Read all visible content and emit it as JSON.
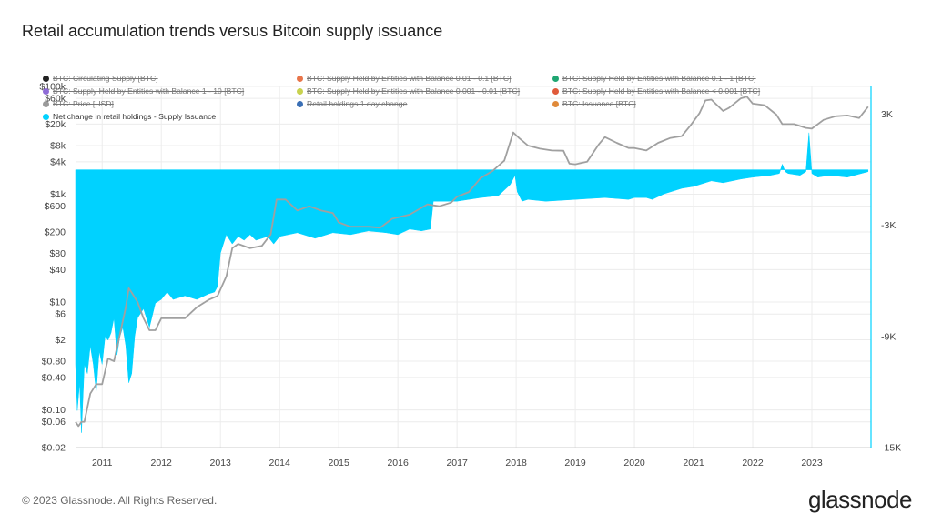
{
  "title": "Retail accumulation trends versus Bitcoin supply issuance",
  "footer": "© 2023 Glassnode. All Rights Reserved.",
  "brand": "glassnode",
  "legend": [
    {
      "label": "BTC: Circulating Supply [BTC]",
      "color": "#222222",
      "active": false
    },
    {
      "label": "BTC: Supply Held by Entities with Balance 0.01 - 0.1 [BTC]",
      "color": "#e8754a",
      "active": false
    },
    {
      "label": "BTC: Supply Held by Entities with Balance 0.1 - 1 [BTC]",
      "color": "#1fa672",
      "active": false
    },
    {
      "label": "BTC: Supply Held by Entities with Balance 1 - 10 [BTC]",
      "color": "#8e6bd6",
      "active": false
    },
    {
      "label": "BTC: Supply Held by Entities with Balance 0.001 - 0.01 [BTC]",
      "color": "#c8d24f",
      "active": false
    },
    {
      "label": "BTC: Supply Held by Entities with Balance < 0.001 [BTC]",
      "color": "#e05a3a",
      "active": false
    },
    {
      "label": "BTC: Price [USD]",
      "color": "#9a9a9a",
      "active": false
    },
    {
      "label": "Retail holdings 1 day change",
      "color": "#3a6fb5",
      "active": false
    },
    {
      "label": "BTC: Issuance [BTC]",
      "color": "#e08a3a",
      "active": false
    },
    {
      "label": "Net change in retail holdings - Supply Issuance",
      "color": "#00d2ff",
      "active": true
    }
  ],
  "colors": {
    "price_line": "#a0a0a0",
    "net_area": "#00d2ff",
    "grid": "#ececec",
    "axis_line": "#00d2ff"
  },
  "chart_data": {
    "type": "area",
    "x_ticks": [
      "2011",
      "2012",
      "2013",
      "2014",
      "2015",
      "2016",
      "2017",
      "2018",
      "2019",
      "2020",
      "2021",
      "2022",
      "2023"
    ],
    "x_range": [
      2010.55,
      2024.0
    ],
    "y_left": {
      "scale": "log",
      "range": [
        0.02,
        100000
      ],
      "tick_values": [
        0.02,
        0.06,
        0.1,
        0.4,
        0.8,
        2,
        6,
        10,
        40,
        80,
        200,
        600,
        1000,
        4000,
        8000,
        20000,
        60000,
        100000
      ],
      "tick_labels": [
        "$0.02",
        "$0.06",
        "$0.10",
        "$0.40",
        "$0.80",
        "$2",
        "$6",
        "$10",
        "$40",
        "$80",
        "$200",
        "$600",
        "$1k",
        "$4k",
        "$8k",
        "$20k",
        "$60k",
        "$100k"
      ]
    },
    "y_right": {
      "scale": "linear",
      "range": [
        -15000,
        4500
      ],
      "tick_values": [
        3000,
        -3000,
        -9000,
        -15000
      ],
      "tick_labels": [
        "3K",
        "-3K",
        "-9K",
        "-15K"
      ]
    },
    "series": [
      {
        "name": "BTC: Price [USD]",
        "axis": "left",
        "x": [
          2010.55,
          2010.6,
          2010.65,
          2010.7,
          2010.8,
          2010.9,
          2011.0,
          2011.1,
          2011.2,
          2011.3,
          2011.4,
          2011.45,
          2011.5,
          2011.6,
          2011.7,
          2011.8,
          2011.9,
          2012.0,
          2012.2,
          2012.4,
          2012.6,
          2012.8,
          2012.95,
          2013.1,
          2013.2,
          2013.3,
          2013.5,
          2013.7,
          2013.85,
          2013.95,
          2014.1,
          2014.3,
          2014.5,
          2014.7,
          2014.9,
          2015.0,
          2015.2,
          2015.5,
          2015.7,
          2015.9,
          2016.2,
          2016.5,
          2016.7,
          2016.9,
          2017.0,
          2017.2,
          2017.4,
          2017.6,
          2017.8,
          2017.95,
          2018.05,
          2018.2,
          2018.4,
          2018.6,
          2018.8,
          2018.9,
          2019.0,
          2019.2,
          2019.4,
          2019.5,
          2019.7,
          2019.9,
          2020.0,
          2020.2,
          2020.4,
          2020.6,
          2020.8,
          2020.95,
          2021.1,
          2021.2,
          2021.3,
          2021.5,
          2021.6,
          2021.8,
          2021.9,
          2022.0,
          2022.2,
          2022.4,
          2022.5,
          2022.7,
          2022.9,
          2023.0,
          2023.2,
          2023.4,
          2023.6,
          2023.8,
          2023.95
        ],
        "values": [
          0.06,
          0.05,
          0.06,
          0.06,
          0.2,
          0.3,
          0.3,
          0.9,
          0.8,
          2.5,
          8,
          18,
          15,
          10,
          5,
          3,
          3,
          5,
          5,
          5,
          8,
          11,
          13,
          30,
          100,
          120,
          100,
          110,
          180,
          800,
          800,
          500,
          600,
          500,
          450,
          300,
          250,
          250,
          240,
          350,
          420,
          650,
          600,
          700,
          900,
          1100,
          2000,
          2700,
          4200,
          14000,
          11000,
          8000,
          7000,
          6500,
          6400,
          3700,
          3600,
          4000,
          8500,
          11500,
          9000,
          7200,
          7200,
          6500,
          9000,
          11000,
          12000,
          19000,
          32000,
          55000,
          57000,
          35000,
          40000,
          60000,
          65000,
          48000,
          45000,
          30000,
          20000,
          20000,
          17000,
          16500,
          24000,
          28000,
          29000,
          26000,
          42000
        ]
      },
      {
        "name": "Net change in retail holdings - Supply Issuance",
        "axis": "right",
        "x": [
          2010.55,
          2010.58,
          2010.62,
          2010.65,
          2010.7,
          2010.75,
          2010.8,
          2010.85,
          2010.9,
          2010.95,
          2011.0,
          2011.05,
          2011.1,
          2011.15,
          2011.2,
          2011.25,
          2011.3,
          2011.35,
          2011.4,
          2011.45,
          2011.5,
          2011.55,
          2011.6,
          2011.7,
          2011.8,
          2011.9,
          2012.0,
          2012.1,
          2012.2,
          2012.4,
          2012.6,
          2012.8,
          2012.9,
          2012.95,
          2013.0,
          2013.1,
          2013.2,
          2013.3,
          2013.4,
          2013.5,
          2013.6,
          2013.8,
          2013.9,
          2014.0,
          2014.3,
          2014.6,
          2014.9,
          2015.2,
          2015.5,
          2015.8,
          2016.0,
          2016.2,
          2016.4,
          2016.55,
          2016.6,
          2017.0,
          2017.4,
          2017.7,
          2017.9,
          2017.98,
          2018.02,
          2018.1,
          2018.2,
          2018.5,
          2019.0,
          2019.5,
          2019.9,
          2020.0,
          2020.2,
          2020.3,
          2020.5,
          2020.8,
          2021.0,
          2021.3,
          2021.5,
          2021.8,
          2022.0,
          2022.3,
          2022.45,
          2022.5,
          2022.55,
          2022.6,
          2022.8,
          2022.9,
          2022.95,
          2023.0,
          2023.1,
          2023.3,
          2023.6,
          2023.95
        ],
        "values": [
          -10500,
          -13000,
          -11500,
          -14200,
          -10500,
          -11000,
          -9500,
          -10500,
          -12000,
          -9800,
          -10500,
          -9000,
          -9200,
          -8800,
          -8000,
          -10000,
          -9000,
          -8500,
          -9500,
          -11500,
          -11000,
          -9000,
          -8000,
          -7500,
          -8500,
          -7200,
          -7000,
          -6600,
          -7000,
          -6800,
          -7000,
          -6700,
          -6600,
          -6300,
          -4500,
          -3500,
          -4000,
          -3600,
          -3800,
          -3500,
          -3800,
          -3600,
          -4000,
          -3600,
          -3400,
          -3700,
          -3400,
          -3500,
          -3300,
          -3400,
          -3500,
          -3200,
          -3300,
          -3200,
          -1700,
          -1700,
          -1500,
          -1400,
          -800,
          -300,
          -1200,
          -1700,
          -1600,
          -1700,
          -1600,
          -1500,
          -1600,
          -1500,
          -1500,
          -1600,
          -1300,
          -1000,
          -900,
          -600,
          -700,
          -500,
          -400,
          -300,
          -200,
          300,
          -100,
          -200,
          -300,
          -100,
          2000,
          -200,
          -400,
          -300,
          -400,
          -100
        ]
      }
    ],
    "grid": true,
    "legend_position": "top-left"
  }
}
